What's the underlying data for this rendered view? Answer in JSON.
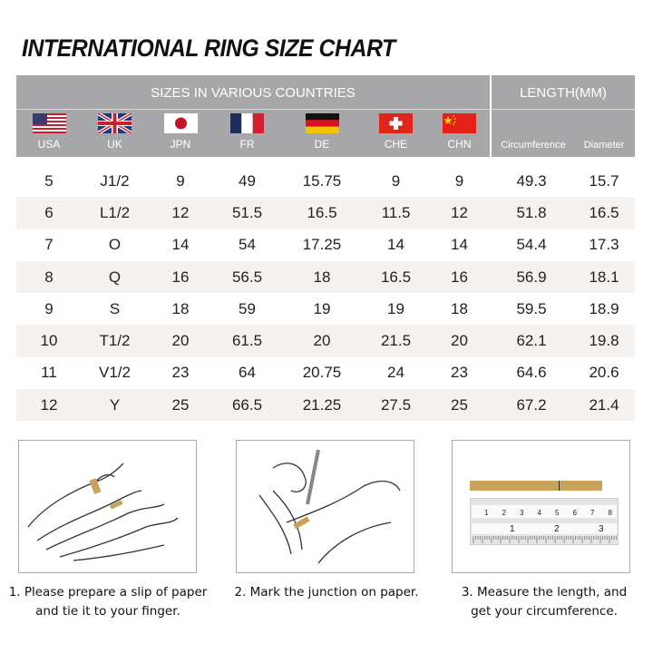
{
  "title": "INTERNATIONAL RING SIZE CHART",
  "header": {
    "sizes_label": "SIZES IN VARIOUS COUNTRIES",
    "length_label": "LENGTH(MM)",
    "countries": [
      {
        "code": "USA",
        "flag": "usa-flag"
      },
      {
        "code": "UK",
        "flag": "uk-flag"
      },
      {
        "code": "JPN",
        "flag": "japan-flag"
      },
      {
        "code": "FR",
        "flag": "france-flag"
      },
      {
        "code": "DE",
        "flag": "germany-flag"
      },
      {
        "code": "CHE",
        "flag": "switzerland-flag"
      },
      {
        "code": "CHN",
        "flag": "china-flag"
      }
    ],
    "circumference": "Circumference",
    "diameter": "Diameter"
  },
  "rows": [
    [
      "5",
      "J1/2",
      "9",
      "49",
      "15.75",
      "9",
      "9",
      "49.3",
      "15.7"
    ],
    [
      "6",
      "L1/2",
      "12",
      "51.5",
      "16.5",
      "11.5",
      "12",
      "51.8",
      "16.5"
    ],
    [
      "7",
      "O",
      "14",
      "54",
      "17.25",
      "14",
      "14",
      "54.4",
      "17.3"
    ],
    [
      "8",
      "Q",
      "16",
      "56.5",
      "18",
      "16.5",
      "16",
      "56.9",
      "18.1"
    ],
    [
      "9",
      "S",
      "18",
      "59",
      "19",
      "19",
      "18",
      "59.5",
      "18.9"
    ],
    [
      "10",
      "T1/2",
      "20",
      "61.5",
      "20",
      "21.5",
      "20",
      "62.1",
      "19.8"
    ],
    [
      "11",
      "V1/2",
      "23",
      "64",
      "20.75",
      "24",
      "23",
      "64.6",
      "20.6"
    ],
    [
      "12",
      "Y",
      "25",
      "66.5",
      "21.25",
      "27.5",
      "25",
      "67.2",
      "21.4"
    ]
  ],
  "steps": [
    {
      "line1": "1. Please prepare a slip of paper",
      "line2": "and tie it to your finger."
    },
    {
      "line1": "2. Mark the junction on paper.",
      "line2": ""
    },
    {
      "line1": "3. Measure the length, and",
      "line2": "get your circumference."
    }
  ],
  "ruler": {
    "top_marks": [
      "1",
      "2",
      "3",
      "4",
      "5",
      "6",
      "7",
      "8"
    ],
    "bottom_marks": [
      "1",
      "2",
      "3"
    ]
  },
  "colors": {
    "header_bg": "#a7a7a9",
    "stripe": "#f6f2f0",
    "paper": "#c9a25a"
  }
}
